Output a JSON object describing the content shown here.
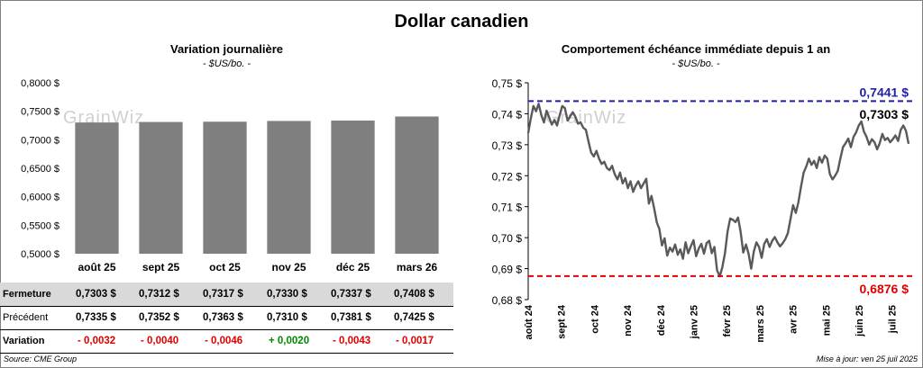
{
  "title": "Dollar canadien",
  "left": {
    "title": "Variation  journalière",
    "subtitle": "- $US/bo. -",
    "watermark": "GrainWiz"
  },
  "right": {
    "title": "Comportement échéance immédiate depuis 1 an",
    "subtitle": "- $US/bo. -",
    "watermark": "GrainWiz",
    "max_label": "0,7441 $",
    "last_label": "0,7303 $",
    "min_label": "0,6876 $"
  },
  "table": {
    "rows": [
      {
        "label": "Fermeture",
        "values": [
          "0,7303  $",
          "0,7312  $",
          "0,7317  $",
          "0,7330  $",
          "0,7337  $",
          "0,7408  $"
        ]
      },
      {
        "label": "Précédent",
        "values": [
          "0,7335  $",
          "0,7352  $",
          "0,7363  $",
          "0,7310  $",
          "0,7381  $",
          "0,7425  $"
        ]
      },
      {
        "label": "Variation",
        "values": [
          "- 0,0032",
          "- 0,0040",
          "- 0,0046",
          "+ 0,0020",
          "- 0,0043",
          "- 0,0017"
        ]
      }
    ]
  },
  "source": "Source: CME Group",
  "update": "Mise à jour: ven 25 juil 2025",
  "colors": {
    "bar": "#7f7f7f",
    "line": "#595959",
    "max": "#1f1fa8",
    "min": "#e00000",
    "up": "#008a00",
    "down": "#e00000"
  },
  "chart_data": [
    {
      "type": "bar",
      "title": "Variation  journalière",
      "subtitle": "- $US/bo. -",
      "categories": [
        "août 25",
        "sept 25",
        "oct 25",
        "nov 25",
        "déc 25",
        "mars 26"
      ],
      "values": [
        0.7303,
        0.7312,
        0.7317,
        0.733,
        0.7337,
        0.7408
      ],
      "ylim": [
        0.5,
        0.8
      ],
      "yticks": [
        "0,5000 $",
        "0,5500 $",
        "0,6000 $",
        "0,6500 $",
        "0,7000 $",
        "0,7500 $",
        "0,8000 $"
      ],
      "grid": false
    },
    {
      "type": "line",
      "title": "Comportement échéance immédiate depuis 1 an",
      "subtitle": "- $US/bo. -",
      "ylim": [
        0.68,
        0.75
      ],
      "yticks": [
        "0,68 $",
        "0,69 $",
        "0,70 $",
        "0,71 $",
        "0,72 $",
        "0,73 $",
        "0,74 $",
        "0,75 $"
      ],
      "xticks": [
        "août 24",
        "sept 24",
        "oct 24",
        "nov 24",
        "déc 24",
        "janv 25",
        "févr 25",
        "mars 25",
        "avr 25",
        "mai 25",
        "juin 25",
        "juil 25"
      ],
      "x_tick_positions": [
        0,
        22,
        44,
        66,
        88,
        110,
        132,
        154,
        176,
        198,
        220,
        242
      ],
      "x_range": [
        0,
        253
      ],
      "y": [
        0.7338,
        0.7385,
        0.7425,
        0.7408,
        0.7432,
        0.7395,
        0.7372,
        0.741,
        0.7388,
        0.7365,
        0.738,
        0.7362,
        0.7395,
        0.7425,
        0.7418,
        0.7378,
        0.7392,
        0.7405,
        0.739,
        0.7368,
        0.7372,
        0.7355,
        0.7348,
        0.731,
        0.7275,
        0.7262,
        0.728,
        0.7255,
        0.7238,
        0.7245,
        0.7225,
        0.7218,
        0.7232,
        0.7205,
        0.7188,
        0.721,
        0.7175,
        0.7192,
        0.716,
        0.7182,
        0.7148,
        0.7168,
        0.7182,
        0.716,
        0.7175,
        0.719,
        0.711,
        0.7135,
        0.7095,
        0.705,
        0.7028,
        0.6975,
        0.6998,
        0.6942,
        0.6968,
        0.6955,
        0.6978,
        0.6945,
        0.6962,
        0.6932,
        0.6985,
        0.695,
        0.6972,
        0.6992,
        0.694,
        0.6965,
        0.698,
        0.6948,
        0.6982,
        0.699,
        0.695,
        0.697,
        0.6895,
        0.6875,
        0.6905,
        0.695,
        0.702,
        0.7062,
        0.7058,
        0.705,
        0.7065,
        0.7018,
        0.6952,
        0.6978,
        0.6948,
        0.69,
        0.6955,
        0.6985,
        0.697,
        0.6935,
        0.698,
        0.6995,
        0.697,
        0.699,
        0.7002,
        0.6985,
        0.6972,
        0.6982,
        0.6995,
        0.7015,
        0.706,
        0.7105,
        0.708,
        0.7115,
        0.7165,
        0.721,
        0.723,
        0.7255,
        0.7235,
        0.7248,
        0.7225,
        0.726,
        0.7242,
        0.7265,
        0.7255,
        0.7205,
        0.7188,
        0.72,
        0.7215,
        0.7255,
        0.7292,
        0.7305,
        0.732,
        0.7292,
        0.7325,
        0.734,
        0.7362,
        0.7375,
        0.7342,
        0.7325,
        0.73,
        0.7318,
        0.7308,
        0.7285,
        0.7305,
        0.7335,
        0.7315,
        0.7322,
        0.7308,
        0.7318,
        0.733,
        0.7312,
        0.7348,
        0.7362,
        0.7345,
        0.7303
      ],
      "hlines": [
        {
          "value": 0.7441,
          "label": "0,7441 $",
          "color": "#1f1fa8"
        },
        {
          "value": 0.6876,
          "label": "0,6876 $",
          "color": "#e00000"
        }
      ],
      "last_value_label": "0,7303 $"
    }
  ]
}
